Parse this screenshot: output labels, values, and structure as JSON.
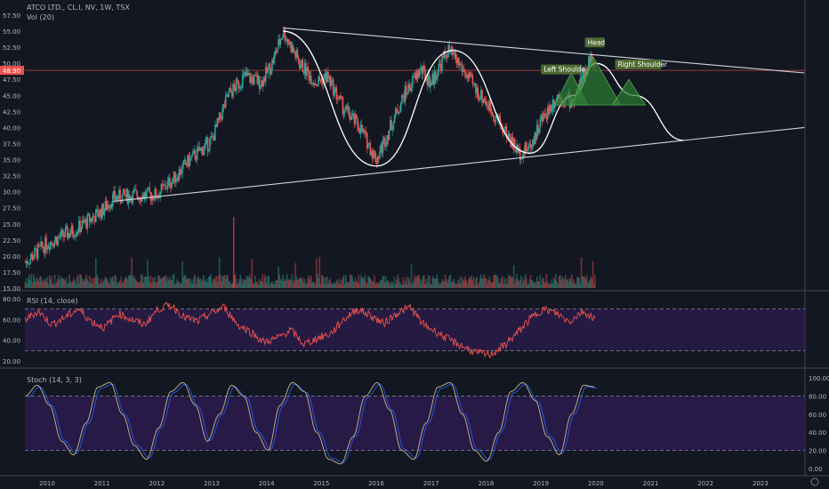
{
  "chart_data": [
    {
      "type": "candlestick",
      "title": "ATCO LTD., CL.I, NV, 1W, TSX",
      "indicator": "Vol (20)",
      "current_price": "48.90",
      "price_axis_ticks": [
        "57.50",
        "55.00",
        "52.50",
        "50.00",
        "47.50",
        "45.00",
        "42.50",
        "40.00",
        "37.50",
        "35.00",
        "32.50",
        "30.00",
        "27.50",
        "25.00",
        "22.50",
        "20.00",
        "17.50",
        "15.00"
      ],
      "ylim": [
        15.0,
        58.0
      ],
      "x_axis_ticks": [
        "2010",
        "2011",
        "2012",
        "2013",
        "2014",
        "2015",
        "2016",
        "2017",
        "2018",
        "2019",
        "2020",
        "2021",
        "2022",
        "2023"
      ],
      "series": [
        {
          "name": "price",
          "points": [
            [
              "2009.6",
              19
            ],
            [
              "2010.0",
              22
            ],
            [
              "2010.5",
              24
            ],
            [
              "2011.0",
              27
            ],
            [
              "2011.2",
              29
            ],
            [
              "2011.6",
              29.5
            ],
            [
              "2012.0",
              29.5
            ],
            [
              "2012.3",
              32
            ],
            [
              "2012.6",
              35
            ],
            [
              "2013.0",
              38
            ],
            [
              "2013.3",
              45
            ],
            [
              "2013.6",
              48
            ],
            [
              "2013.9",
              47
            ],
            [
              "2014.1",
              50
            ],
            [
              "2014.3",
              55
            ],
            [
              "2014.6",
              50
            ],
            [
              "2014.9",
              47
            ],
            [
              "2015.1",
              48
            ],
            [
              "2015.4",
              43
            ],
            [
              "2015.7",
              40
            ],
            [
              "2016.0",
              35
            ],
            [
              "2016.2",
              39
            ],
            [
              "2016.5",
              45
            ],
            [
              "2016.8",
              49
            ],
            [
              "2017.0",
              47
            ],
            [
              "2017.3",
              52
            ],
            [
              "2017.5",
              50
            ],
            [
              "2017.8",
              46
            ],
            [
              "2018.0",
              44
            ],
            [
              "2018.3",
              40
            ],
            [
              "2018.6",
              36
            ],
            [
              "2018.8",
              37
            ],
            [
              "2019.0",
              41
            ],
            [
              "2019.3",
              45
            ],
            [
              "2019.6",
              44
            ],
            [
              "2019.9",
              51
            ],
            [
              "2020.0",
              48.9
            ]
          ]
        },
        {
          "name": "volume",
          "values": [
            0.4,
            0.5,
            0.6,
            0.5,
            0.7,
            0.6,
            0.5,
            0.8,
            0.6,
            0.5,
            0.9,
            0.6,
            0.5,
            0.6,
            0.7,
            0.8,
            0.6,
            0.5,
            0.6,
            0.7
          ]
        }
      ],
      "annotations": {
        "left_shoulder": "Left Shoulde",
        "head": "Head",
        "right_shoulder": "Right Shoulder"
      },
      "trendlines": {
        "upper": [
          [
            "2014.3",
            55.5
          ],
          [
            "2023.8",
            48.5
          ]
        ],
        "lower": [
          [
            "2011.2",
            28.5
          ],
          [
            "2023.8",
            40
          ]
        ]
      },
      "projection": [
        [
          "2014.3",
          55
        ],
        [
          "2016.0",
          34
        ],
        [
          "2017.4",
          52
        ],
        [
          "2018.8",
          36
        ],
        [
          "2019.6",
          45
        ],
        [
          "2020.0",
          50
        ],
        [
          "2020.7",
          45
        ],
        [
          "2021.6",
          38
        ]
      ]
    },
    {
      "type": "line",
      "title": "RSI (14, close)",
      "y_axis_ticks": [
        "80.00",
        "60.00",
        "40.00",
        "20.00"
      ],
      "ylim": [
        15,
        85
      ],
      "bands": [
        30,
        70
      ],
      "series": [
        {
          "name": "rsi",
          "values": [
            60,
            68,
            55,
            62,
            70,
            58,
            52,
            66,
            60,
            55,
            70,
            74,
            62,
            58,
            66,
            72,
            55,
            48,
            38,
            42,
            50,
            36,
            42,
            46,
            60,
            70,
            64,
            56,
            66,
            72,
            55,
            48,
            40,
            34,
            28,
            26,
            34,
            46,
            60,
            70,
            66,
            58,
            68,
            60
          ]
        }
      ]
    },
    {
      "type": "line",
      "title": "Stoch (14, 3, 3)",
      "y_axis_ticks": [
        "100.00",
        "80.00",
        "60.00",
        "40.00",
        "20.00",
        "0.00"
      ],
      "ylim": [
        -5,
        105
      ],
      "bands": [
        20,
        80
      ],
      "series": [
        {
          "name": "stoch",
          "values": [
            80,
            92,
            70,
            30,
            15,
            50,
            90,
            95,
            60,
            25,
            10,
            45,
            85,
            95,
            70,
            30,
            60,
            92,
            80,
            40,
            20,
            70,
            95,
            85,
            40,
            10,
            5,
            35,
            80,
            95,
            65,
            20,
            10,
            50,
            90,
            95,
            60,
            20,
            8,
            40,
            85,
            95,
            75,
            35,
            15,
            60,
            92,
            90
          ]
        }
      ]
    }
  ]
}
